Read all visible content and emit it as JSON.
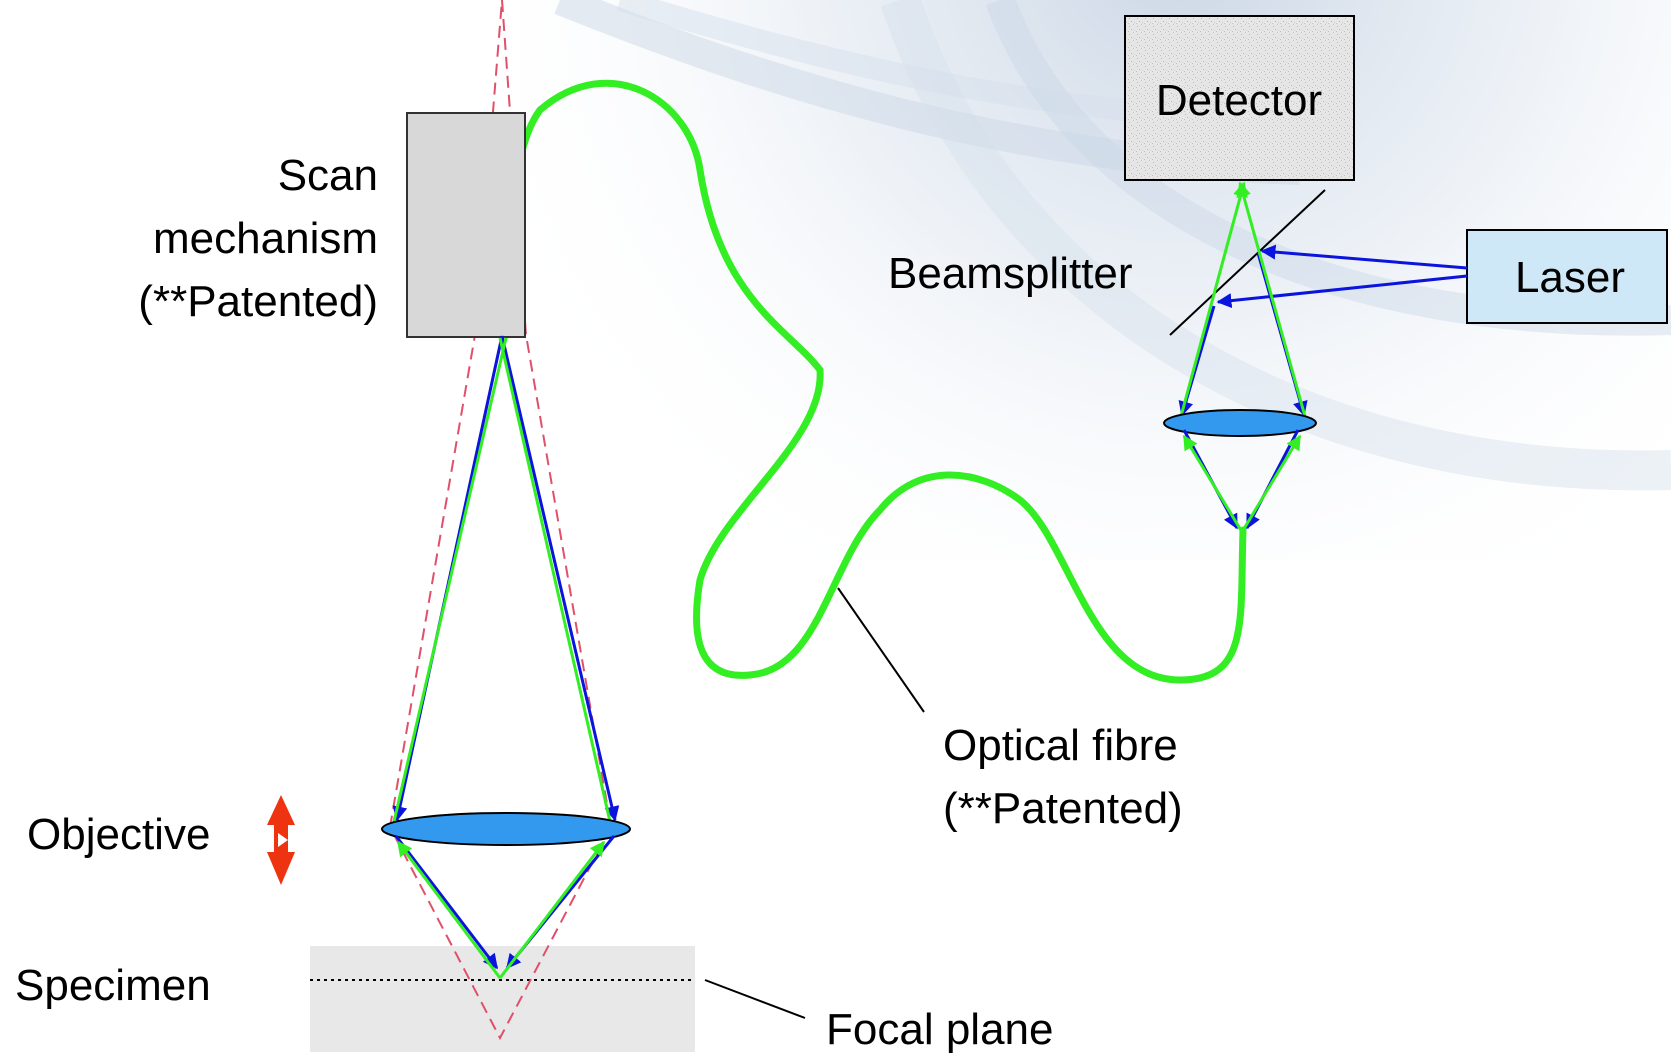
{
  "labels": {
    "scan_line1": "Scan",
    "scan_line2": "mechanism",
    "scan_line3": "(**Patented)",
    "objective": "Objective",
    "specimen": "Specimen",
    "focal_plane": "Focal plane",
    "optical_fibre_line1": "Optical fibre",
    "optical_fibre_line2": "(**Patented)",
    "detector": "Detector",
    "beamsplitter": "Beamsplitter",
    "laser": "Laser"
  },
  "colors": {
    "fibre": "#33ee22",
    "return_ray": "#33ee22",
    "excitation_ray": "#0a14dd",
    "dashed_cone": "#e0506a",
    "lens_fill": "#3399ee",
    "objective_arrow": "#ee3311",
    "scan_box": "#d8d8d8",
    "detector_box": "#e4e4e4",
    "laser_box": "#cfe8f7",
    "specimen_block": "#e8e8e8"
  },
  "icons": {
    "focus_adjust": "double-headed-vertical-arrow-icon"
  }
}
